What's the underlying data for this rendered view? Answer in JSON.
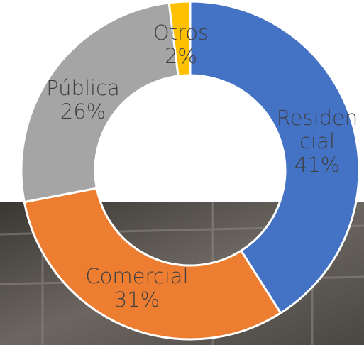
{
  "chart_data": {
    "type": "donut",
    "categories": [
      "Residencial",
      "Comercial",
      "Pública",
      "Otros"
    ],
    "values": [
      41,
      31,
      26,
      2
    ],
    "value_labels": [
      "41%",
      "31%",
      "26%",
      "2%"
    ],
    "colors": [
      "#4472c4",
      "#ed7d31",
      "#a5a5a5",
      "#ffc000"
    ]
  }
}
